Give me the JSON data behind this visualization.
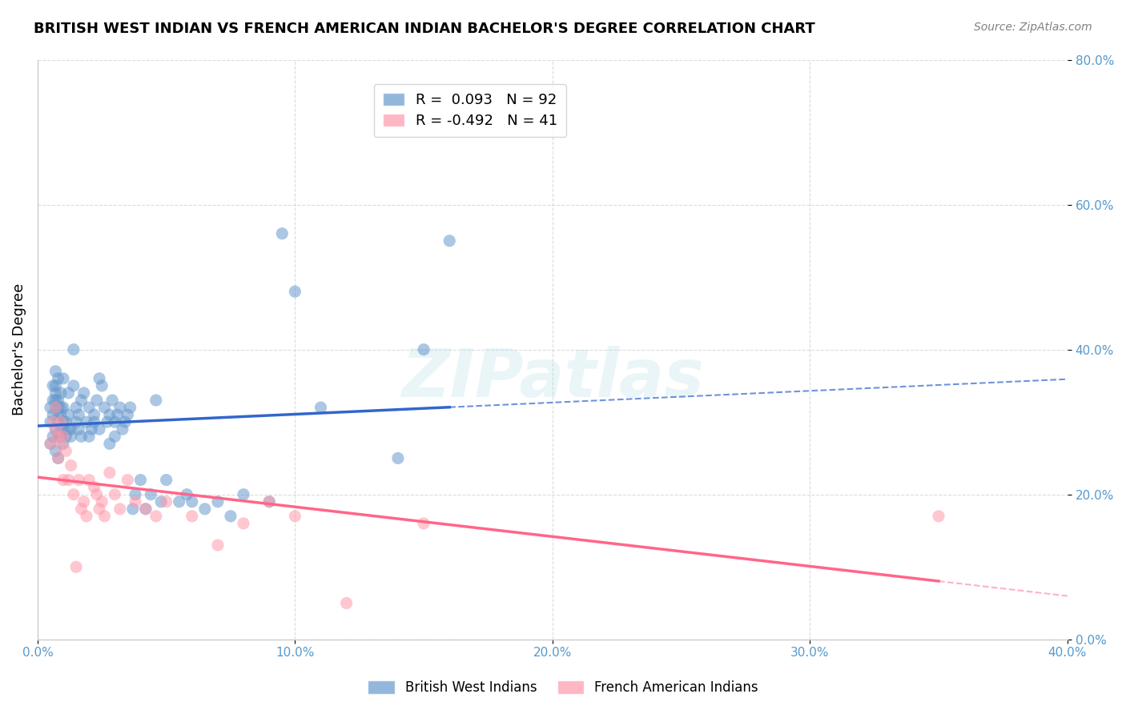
{
  "title": "BRITISH WEST INDIAN VS FRENCH AMERICAN INDIAN BACHELOR'S DEGREE CORRELATION CHART",
  "source": "Source: ZipAtlas.com",
  "xlabel": "",
  "ylabel": "Bachelor's Degree",
  "xlim": [
    0.0,
    0.4
  ],
  "ylim": [
    0.0,
    0.8
  ],
  "xticks": [
    0.0,
    0.1,
    0.2,
    0.3,
    0.4
  ],
  "yticks": [
    0.0,
    0.2,
    0.4,
    0.6,
    0.8
  ],
  "xtick_labels": [
    "0.0%",
    "10.0%",
    "20.0%",
    "30.0%",
    "40.0%"
  ],
  "ytick_labels": [
    "0.0%",
    "20.0%",
    "40.0%",
    "60.0%",
    "80.0%"
  ],
  "blue_R": 0.093,
  "blue_N": 92,
  "pink_R": -0.492,
  "pink_N": 41,
  "blue_color": "#6699CC",
  "pink_color": "#FF99AA",
  "blue_line_color": "#3366CC",
  "pink_line_color": "#FF6688",
  "watermark": "ZIPatlas",
  "blue_scatter_x": [
    0.005,
    0.005,
    0.005,
    0.006,
    0.006,
    0.006,
    0.006,
    0.007,
    0.007,
    0.007,
    0.007,
    0.007,
    0.007,
    0.007,
    0.008,
    0.008,
    0.008,
    0.008,
    0.008,
    0.008,
    0.008,
    0.009,
    0.009,
    0.009,
    0.009,
    0.009,
    0.01,
    0.01,
    0.01,
    0.01,
    0.01,
    0.011,
    0.011,
    0.012,
    0.012,
    0.012,
    0.013,
    0.013,
    0.014,
    0.014,
    0.015,
    0.015,
    0.016,
    0.016,
    0.017,
    0.017,
    0.018,
    0.019,
    0.02,
    0.02,
    0.021,
    0.022,
    0.022,
    0.023,
    0.024,
    0.024,
    0.025,
    0.026,
    0.027,
    0.028,
    0.028,
    0.029,
    0.03,
    0.03,
    0.031,
    0.032,
    0.033,
    0.034,
    0.035,
    0.036,
    0.037,
    0.038,
    0.04,
    0.042,
    0.044,
    0.046,
    0.048,
    0.05,
    0.055,
    0.058,
    0.06,
    0.065,
    0.07,
    0.075,
    0.08,
    0.09,
    0.095,
    0.1,
    0.11,
    0.14,
    0.15,
    0.16
  ],
  "blue_scatter_y": [
    0.3,
    0.27,
    0.32,
    0.35,
    0.28,
    0.31,
    0.33,
    0.34,
    0.26,
    0.29,
    0.32,
    0.33,
    0.35,
    0.37,
    0.25,
    0.28,
    0.3,
    0.31,
    0.32,
    0.33,
    0.36,
    0.28,
    0.29,
    0.31,
    0.32,
    0.34,
    0.27,
    0.29,
    0.3,
    0.32,
    0.36,
    0.28,
    0.3,
    0.29,
    0.31,
    0.34,
    0.28,
    0.29,
    0.35,
    0.4,
    0.3,
    0.32,
    0.29,
    0.31,
    0.28,
    0.33,
    0.34,
    0.3,
    0.28,
    0.32,
    0.29,
    0.31,
    0.3,
    0.33,
    0.29,
    0.36,
    0.35,
    0.32,
    0.3,
    0.27,
    0.31,
    0.33,
    0.3,
    0.28,
    0.31,
    0.32,
    0.29,
    0.3,
    0.31,
    0.32,
    0.18,
    0.2,
    0.22,
    0.18,
    0.2,
    0.33,
    0.19,
    0.22,
    0.19,
    0.2,
    0.19,
    0.18,
    0.19,
    0.17,
    0.2,
    0.19,
    0.56,
    0.48,
    0.32,
    0.25,
    0.4,
    0.55
  ],
  "pink_scatter_x": [
    0.005,
    0.006,
    0.007,
    0.007,
    0.008,
    0.008,
    0.009,
    0.009,
    0.01,
    0.01,
    0.011,
    0.012,
    0.013,
    0.014,
    0.015,
    0.016,
    0.017,
    0.018,
    0.019,
    0.02,
    0.022,
    0.023,
    0.024,
    0.025,
    0.026,
    0.028,
    0.03,
    0.032,
    0.035,
    0.038,
    0.042,
    0.046,
    0.05,
    0.06,
    0.07,
    0.08,
    0.09,
    0.1,
    0.12,
    0.15,
    0.35
  ],
  "pink_scatter_y": [
    0.27,
    0.3,
    0.29,
    0.32,
    0.25,
    0.28,
    0.27,
    0.3,
    0.28,
    0.22,
    0.26,
    0.22,
    0.24,
    0.2,
    0.1,
    0.22,
    0.18,
    0.19,
    0.17,
    0.22,
    0.21,
    0.2,
    0.18,
    0.19,
    0.17,
    0.23,
    0.2,
    0.18,
    0.22,
    0.19,
    0.18,
    0.17,
    0.19,
    0.17,
    0.13,
    0.16,
    0.19,
    0.17,
    0.05,
    0.16,
    0.17
  ]
}
